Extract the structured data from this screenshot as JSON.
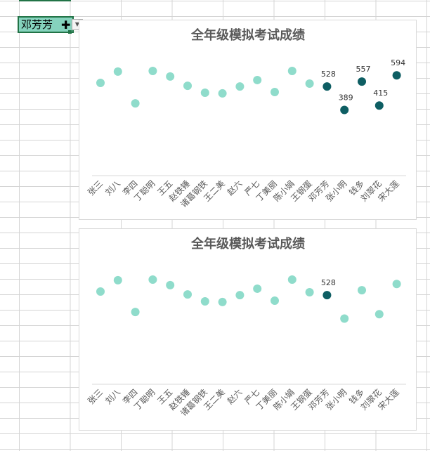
{
  "cell": {
    "value": "邓芳芳"
  },
  "colors": {
    "normal": "#8fdccb",
    "highlight": "#0e5e63",
    "axis": "#d9d9d9",
    "title": "#595959",
    "label": "#595959"
  },
  "chart_data": [
    {
      "type": "scatter",
      "title": "全年级模拟考试成绩",
      "categories": [
        "张三",
        "刘八",
        "李四",
        "丁聪明",
        "王五",
        "赵铁锤",
        "诸葛钢铁",
        "王二美",
        "赵六",
        "严七",
        "丁美丽",
        "陈小娟",
        "王钢蛋",
        "邓芳芳",
        "张小明",
        "钱多",
        "刘翠花",
        "宋大莲"
      ],
      "values": [
        549,
        616,
        428,
        620,
        587,
        532,
        491,
        487,
        528,
        566,
        495,
        620,
        545,
        528,
        389,
        557,
        415,
        594
      ],
      "highlighted": [
        13,
        14,
        15,
        16,
        17
      ],
      "data_labels": {
        "13": "528",
        "14": "389",
        "15": "557",
        "16": "415",
        "17": "594"
      },
      "ylim": [
        0,
        650
      ],
      "grid": false
    },
    {
      "type": "scatter",
      "title": "全年级模拟考试成绩",
      "categories": [
        "张三",
        "刘八",
        "李四",
        "丁聪明",
        "王五",
        "赵铁锤",
        "诸葛钢铁",
        "王二美",
        "赵六",
        "严七",
        "丁美丽",
        "陈小娟",
        "王钢蛋",
        "邓芳芳",
        "张小明",
        "钱多",
        "刘翠花",
        "宋大莲"
      ],
      "values": [
        549,
        616,
        428,
        620,
        587,
        532,
        491,
        487,
        528,
        566,
        495,
        620,
        545,
        528,
        389,
        557,
        415,
        594
      ],
      "highlighted": [
        13
      ],
      "data_labels": {
        "13": "528"
      },
      "ylim": [
        0,
        650
      ],
      "grid": false
    }
  ]
}
